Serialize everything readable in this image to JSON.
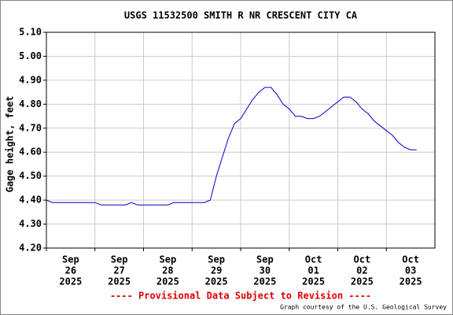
{
  "chart_data": {
    "type": "line",
    "title": "USGS 11532500 SMITH R NR CRESCENT CITY CA",
    "ylabel": "Gage height, feet",
    "footer": "---- Provisional Data Subject to Revision ----",
    "credit": "Graph courtesy of the U.S. Geological Survey",
    "xlim": [
      "2025-09-26 00:00",
      "2025-10-04 00:00"
    ],
    "xticks": [
      {
        "value": "2025-09-26 00:00",
        "label": [
          "Sep",
          "26",
          "2025"
        ]
      },
      {
        "value": "2025-09-27 00:00",
        "label": [
          "Sep",
          "27",
          "2025"
        ]
      },
      {
        "value": "2025-09-28 00:00",
        "label": [
          "Sep",
          "28",
          "2025"
        ]
      },
      {
        "value": "2025-09-29 00:00",
        "label": [
          "Sep",
          "29",
          "2025"
        ]
      },
      {
        "value": "2025-09-30 00:00",
        "label": [
          "Sep",
          "30",
          "2025"
        ]
      },
      {
        "value": "2025-10-01 00:00",
        "label": [
          "Oct",
          "01",
          "2025"
        ]
      },
      {
        "value": "2025-10-02 00:00",
        "label": [
          "Oct",
          "02",
          "2025"
        ]
      },
      {
        "value": "2025-10-03 00:00",
        "label": [
          "Oct",
          "03",
          "2025"
        ]
      }
    ],
    "ylim": [
      4.2,
      5.1
    ],
    "yticks": [
      {
        "value": 4.2,
        "label": "4.20"
      },
      {
        "value": 4.3,
        "label": "4.30"
      },
      {
        "value": 4.4,
        "label": "4.40"
      },
      {
        "value": 4.5,
        "label": "4.50"
      },
      {
        "value": 4.6,
        "label": "4.60"
      },
      {
        "value": 4.7,
        "label": "4.70"
      },
      {
        "value": 4.8,
        "label": "4.80"
      },
      {
        "value": 4.9,
        "label": "4.90"
      },
      {
        "value": 5,
        "label": "5.00"
      },
      {
        "value": 5.1,
        "label": "5.10"
      }
    ],
    "grid": true,
    "x": [
      "2025-09-26 00:00",
      "2025-09-26 03:00",
      "2025-09-26 06:00",
      "2025-09-26 09:00",
      "2025-09-26 12:00",
      "2025-09-26 15:00",
      "2025-09-26 18:00",
      "2025-09-26 21:00",
      "2025-09-27 00:00",
      "2025-09-27 03:00",
      "2025-09-27 06:00",
      "2025-09-27 09:00",
      "2025-09-27 12:00",
      "2025-09-27 15:00",
      "2025-09-27 18:00",
      "2025-09-27 21:00",
      "2025-09-28 00:00",
      "2025-09-28 03:00",
      "2025-09-28 06:00",
      "2025-09-28 09:00",
      "2025-09-28 12:00",
      "2025-09-28 15:00",
      "2025-09-28 18:00",
      "2025-09-28 21:00",
      "2025-09-29 00:00",
      "2025-09-29 03:00",
      "2025-09-29 06:00",
      "2025-09-29 09:00",
      "2025-09-29 12:00",
      "2025-09-29 15:00",
      "2025-09-29 18:00",
      "2025-09-29 21:00",
      "2025-09-30 00:00",
      "2025-09-30 03:00",
      "2025-09-30 06:00",
      "2025-09-30 09:00",
      "2025-09-30 12:00",
      "2025-09-30 15:00",
      "2025-09-30 18:00",
      "2025-09-30 21:00",
      "2025-10-01 00:00",
      "2025-10-01 03:00",
      "2025-10-01 06:00",
      "2025-10-01 09:00",
      "2025-10-01 12:00",
      "2025-10-01 15:00",
      "2025-10-01 18:00",
      "2025-10-01 21:00",
      "2025-10-02 00:00",
      "2025-10-02 03:00",
      "2025-10-02 06:00",
      "2025-10-02 09:00",
      "2025-10-02 12:00",
      "2025-10-02 15:00",
      "2025-10-02 18:00",
      "2025-10-02 21:00",
      "2025-10-03 00:00",
      "2025-10-03 03:00",
      "2025-10-03 06:00",
      "2025-10-03 09:00",
      "2025-10-03 12:00",
      "2025-10-03 15:00"
    ],
    "series": [
      {
        "color": "#0000cc",
        "values": [
          4.4,
          4.39,
          4.39,
          4.39,
          4.39,
          4.39,
          4.39,
          4.39,
          4.39,
          4.38,
          4.38,
          4.38,
          4.38,
          4.38,
          4.39,
          4.38,
          4.38,
          4.38,
          4.38,
          4.38,
          4.38,
          4.39,
          4.39,
          4.39,
          4.39,
          4.39,
          4.39,
          4.4,
          4.5,
          4.58,
          4.66,
          4.72,
          4.74,
          4.78,
          4.82,
          4.85,
          4.87,
          4.87,
          4.84,
          4.8,
          4.78,
          4.75,
          4.75,
          4.74,
          4.74,
          4.75,
          4.77,
          4.79,
          4.81,
          4.83,
          4.83,
          4.81,
          4.78,
          4.76,
          4.73,
          4.71,
          4.69,
          4.67,
          4.64,
          4.62,
          4.61,
          4.61
        ]
      }
    ]
  }
}
